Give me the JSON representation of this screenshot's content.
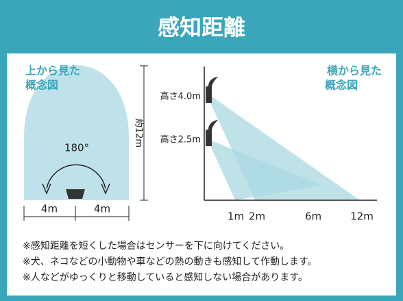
{
  "header": {
    "title": "感知距離"
  },
  "top_view": {
    "label_lines": [
      "上から見た",
      "概念図"
    ],
    "angle": "180°",
    "range_label": "約12m",
    "width_labels": [
      "4m",
      "4m"
    ]
  },
  "side_view": {
    "label_lines": [
      "横から見た",
      "概念図"
    ],
    "heights": [
      "高さ4.0m",
      "高さ2.5m"
    ],
    "distances": [
      "1m",
      "2m",
      "6m",
      "12m"
    ]
  },
  "notes": [
    "※感知距離を短くした場合はセンサーを下に向けてください。",
    "※犬、ネコなどの小動物や車などの熱の動きも感知して作動します。",
    "※人などがゆっくりと移動していると感知しない場合があります。"
  ]
}
